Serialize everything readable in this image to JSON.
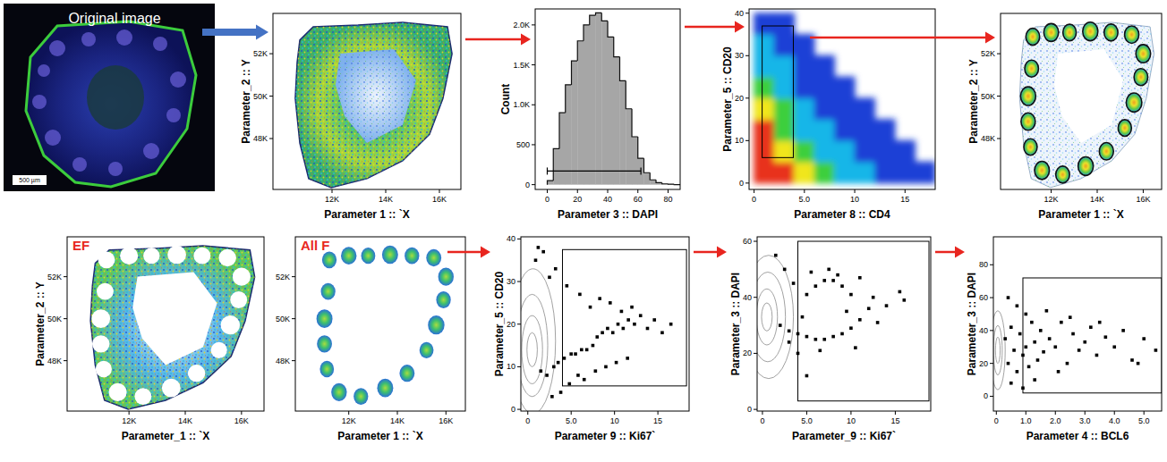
{
  "chart_data": [
    {
      "type": "image",
      "title": "Original image",
      "scale_label": "500 µm"
    },
    {
      "type": "map",
      "x_label": "Parameter 1 :: `X",
      "y_label": "Parameter_2 :: Y",
      "xlim": [
        9800,
        16800
      ],
      "ylim": [
        45600,
        53900
      ],
      "xticks": [
        {
          "value": 12000,
          "label": "12K"
        },
        {
          "value": 14000,
          "label": "14K"
        },
        {
          "value": 16000,
          "label": "16K"
        }
      ],
      "yticks": [
        {
          "value": 48000,
          "label": "48K"
        },
        {
          "value": 50000,
          "label": "50K"
        },
        {
          "value": 52000,
          "label": "52K"
        }
      ],
      "outline": {
        "x": [
          10800,
          11300,
          12970,
          14630,
          16300,
          16470,
          16130,
          15630,
          14630,
          13300,
          11970,
          11130,
          10800,
          10630,
          10700
        ],
        "y": [
          52640,
          53270,
          53350,
          53480,
          53270,
          51990,
          49890,
          48200,
          46950,
          46110,
          45690,
          46110,
          47790,
          49900,
          51580
        ]
      },
      "hollow": {
        "x": [
          12300,
          14300,
          15130,
          14630,
          13300,
          12470,
          12130
        ],
        "y": [
          52010,
          52220,
          50740,
          48640,
          47790,
          49060,
          50530
        ]
      }
    },
    {
      "type": "histogram",
      "x_label": "Parameter 3 :: DAPI",
      "y_label": "Count",
      "xlim": [
        -8,
        88
      ],
      "ylim": [
        -60,
        2200
      ],
      "xticks": [
        0,
        20,
        40,
        60,
        80
      ],
      "yticks": [
        0,
        500,
        {
          "value": 1000,
          "label": "1.0K"
        },
        {
          "value": 1500,
          "label": "1.5K"
        },
        {
          "value": 2000,
          "label": "2.0K"
        }
      ],
      "bins": [
        0,
        4,
        8,
        12,
        16,
        20,
        24,
        28,
        32,
        36,
        40,
        44,
        48,
        52,
        56,
        60,
        64,
        68,
        72,
        76,
        80,
        84,
        88
      ],
      "values": [
        50,
        450,
        900,
        1250,
        1550,
        1800,
        2000,
        2120,
        2150,
        2050,
        1850,
        1600,
        1300,
        950,
        600,
        330,
        150,
        60,
        25,
        10,
        5,
        0
      ],
      "gate": {
        "x": [
          0,
          62
        ],
        "y": 170
      }
    },
    {
      "type": "density",
      "x_label": "Parameter 8 :: CD4",
      "y_label": "Parameter_5 :: CD20",
      "xlim": [
        -0.5,
        18
      ],
      "ylim": [
        -1.5,
        41
      ],
      "xticks": [
        0,
        {
          "value": 5,
          "label": "5.0"
        },
        10,
        15
      ],
      "yticks": [
        0,
        10,
        20,
        30,
        40
      ],
      "x_edges": [
        0,
        2,
        4,
        6,
        8,
        10,
        12,
        14,
        16,
        18
      ],
      "y_edges": [
        0,
        5,
        10,
        15,
        20,
        25,
        30,
        35,
        40
      ],
      "cells": [
        [
          5,
          5,
          4,
          3,
          2,
          2,
          1,
          1,
          1
        ],
        [
          5,
          4,
          3,
          2,
          2,
          1,
          1,
          1,
          0
        ],
        [
          5,
          3,
          2,
          2,
          1,
          1,
          1,
          0,
          0
        ],
        [
          4,
          3,
          2,
          1,
          1,
          1,
          0,
          0,
          0
        ],
        [
          3,
          2,
          1,
          1,
          1,
          0,
          0,
          0,
          0
        ],
        [
          2,
          2,
          1,
          1,
          0,
          0,
          0,
          0,
          0
        ],
        [
          2,
          1,
          1,
          0,
          0,
          0,
          0,
          0,
          0
        ],
        [
          1,
          1,
          0,
          0,
          0,
          0,
          0,
          0,
          0
        ]
      ],
      "gate": {
        "x": [
          0.8,
          3.9
        ],
        "y": [
          6,
          37
        ]
      }
    },
    {
      "type": "map",
      "x_label": "Parameter 1 :: `X",
      "y_label": "Parameter_2 :: Y",
      "xlim": [
        9800,
        16800
      ],
      "ylim": [
        45600,
        53900
      ],
      "xticks": [
        {
          "value": 12000,
          "label": "12K"
        },
        {
          "value": 14000,
          "label": "14K"
        },
        {
          "value": 16000,
          "label": "16K"
        }
      ],
      "yticks": [
        {
          "value": 48000,
          "label": "48K"
        },
        {
          "value": 50000,
          "label": "50K"
        },
        {
          "value": 52000,
          "label": "52K"
        }
      ],
      "outline": {
        "x": [
          10800,
          11300,
          12970,
          14630,
          16300,
          16470,
          16130,
          15630,
          14630,
          13300,
          11970,
          11130,
          10800,
          10630,
          10700
        ],
        "y": [
          52640,
          53270,
          53350,
          53480,
          53270,
          51990,
          49890,
          48200,
          46950,
          46110,
          45690,
          46110,
          47790,
          49900,
          51580
        ]
      },
      "hollow": {
        "x": [
          12300,
          14300,
          15130,
          14630,
          13300,
          12470,
          12130
        ],
        "y": [
          52010,
          52220,
          50740,
          48640,
          47790,
          49060,
          50530
        ]
      },
      "gates": {
        "x": [
          11200,
          12000,
          12800,
          13700,
          14600,
          15500,
          16000,
          15900,
          15600,
          15200,
          14400,
          13500,
          12500,
          11600,
          11100,
          11000,
          11000,
          11150
        ],
        "y": [
          52800,
          53000,
          53000,
          53050,
          53000,
          52900,
          52000,
          50900,
          49700,
          48500,
          47400,
          46700,
          46300,
          46500,
          47600,
          48800,
          50000,
          51300
        ],
        "rx": [
          300,
          320,
          290,
          330,
          300,
          310,
          320,
          300,
          340,
          290,
          310,
          330,
          300,
          320,
          290,
          310,
          330,
          300
        ],
        "ry": [
          400,
          420,
          390,
          440,
          400,
          410,
          430,
          400,
          450,
          390,
          410,
          440,
          400,
          430,
          390,
          410,
          440,
          400
        ]
      }
    },
    {
      "type": "map",
      "title": "EF",
      "x_label": "Parameter_1 :: `X",
      "y_label": "Parameter_2 :: Y",
      "xlim": [
        9800,
        16800
      ],
      "ylim": [
        45600,
        53900
      ],
      "xticks": [
        {
          "value": 12000,
          "label": "12K"
        },
        {
          "value": 14000,
          "label": "14K"
        },
        {
          "value": 16000,
          "label": "16K"
        }
      ],
      "yticks": [
        {
          "value": 48000,
          "label": "48K"
        },
        {
          "value": 50000,
          "label": "50K"
        },
        {
          "value": 52000,
          "label": "52K"
        }
      ],
      "outline": {
        "x": [
          10800,
          11300,
          12970,
          14630,
          16300,
          16470,
          16130,
          15630,
          14630,
          13300,
          11970,
          11130,
          10800,
          10630,
          10700
        ],
        "y": [
          52640,
          53270,
          53350,
          53480,
          53270,
          51990,
          49890,
          48200,
          46950,
          46110,
          45690,
          46110,
          47790,
          49900,
          51580
        ]
      },
      "hollow": {
        "x": [
          12300,
          14300,
          15130,
          14630,
          13300,
          12470,
          12130
        ],
        "y": [
          52010,
          52220,
          50740,
          48640,
          47790,
          49060,
          50530
        ]
      },
      "holes": {
        "x": [
          11200,
          12000,
          12800,
          13700,
          14600,
          15500,
          16000,
          15900,
          15600,
          15200,
          14400,
          13500,
          12500,
          11600,
          11100,
          11000,
          11000,
          11150
        ],
        "y": [
          52800,
          53000,
          53000,
          53050,
          53000,
          52900,
          52000,
          50900,
          49700,
          48500,
          47400,
          46700,
          46300,
          46500,
          47600,
          48800,
          50000,
          51300
        ],
        "rx": [
          300,
          320,
          290,
          330,
          300,
          310,
          320,
          300,
          340,
          290,
          310,
          330,
          300,
          320,
          290,
          310,
          330,
          300
        ],
        "ry": [
          400,
          420,
          390,
          440,
          400,
          410,
          430,
          400,
          450,
          390,
          410,
          440,
          400,
          430,
          390,
          410,
          440,
          400
        ]
      }
    },
    {
      "type": "map",
      "title": "All F",
      "x_label": "Parameter 1 :: `X",
      "xlim": [
        9800,
        16800
      ],
      "ylim": [
        45600,
        53900
      ],
      "xticks": [
        {
          "value": 12000,
          "label": "12K"
        },
        {
          "value": 14000,
          "label": "14K"
        },
        {
          "value": 16000,
          "label": "16K"
        }
      ],
      "yticks": [
        {
          "value": 48000,
          "label": "48K"
        },
        {
          "value": 50000,
          "label": "50K"
        },
        {
          "value": 52000,
          "label": "52K"
        }
      ],
      "follicles": {
        "x": [
          11200,
          12000,
          12800,
          13700,
          14600,
          15500,
          16000,
          15900,
          15600,
          15200,
          14400,
          13500,
          12500,
          11600,
          11100,
          11000,
          11000,
          11150
        ],
        "y": [
          52800,
          53000,
          53000,
          53050,
          53000,
          52900,
          52000,
          50900,
          49700,
          48500,
          47400,
          46700,
          46300,
          46500,
          47600,
          48800,
          50000,
          51300
        ],
        "rx": [
          300,
          320,
          290,
          330,
          300,
          310,
          320,
          300,
          340,
          290,
          310,
          330,
          300,
          320,
          290,
          310,
          330,
          300
        ],
        "ry": [
          400,
          420,
          390,
          440,
          400,
          410,
          430,
          400,
          450,
          390,
          410,
          440,
          400,
          430,
          390,
          410,
          440,
          400
        ]
      }
    },
    {
      "type": "scatter",
      "x_label": "Parameter 9 :: Ki67`",
      "y_label": "Parameter_5 :: CD20",
      "xlim": [
        -0.8,
        18.6
      ],
      "ylim": [
        -0.4,
        40.5
      ],
      "xticks": [
        0,
        {
          "value": 5,
          "label": "5.0"
        },
        10,
        15
      ],
      "yticks": [
        0,
        10,
        20,
        30,
        40
      ],
      "contours": {
        "x": [
          0.5,
          0.5,
          0.5,
          0.6
        ],
        "y": [
          14,
          14,
          15,
          16
        ],
        "rx": [
          0.6,
          1.2,
          1.8,
          2.6
        ],
        "ry": [
          4,
          8,
          12,
          17
        ]
      },
      "x": [
        1.5,
        2.2,
        3.0,
        3.5,
        4.2,
        5.0,
        5.5,
        6.2,
        6.8,
        7.5,
        8.0,
        8.6,
        9.2,
        9.8,
        10.4,
        11.0,
        11.6,
        12.3,
        13.0,
        13.8,
        14.6,
        15.5,
        16.5,
        7.2,
        8.3,
        9.5,
        10.8,
        12.0,
        5.8,
        6.5,
        7.8,
        9.0,
        10.2,
        11.5,
        2.5,
        3.2,
        1.8,
        4.5,
        6.0,
        3.8,
        2.8,
        1.2,
        0.9,
        4.8
      ],
      "y": [
        9,
        8,
        10,
        11,
        12,
        13,
        13,
        14,
        14,
        15,
        17,
        18,
        19,
        18,
        20,
        19,
        21,
        20,
        22,
        19,
        21,
        18,
        20,
        24,
        26,
        25,
        23,
        24,
        8,
        7,
        9,
        10,
        11,
        12,
        31,
        33,
        37,
        29,
        27,
        4,
        3,
        38,
        35,
        6
      ],
      "gate": {
        "x": [
          4,
          18.3
        ],
        "y": [
          5.5,
          37.5
        ]
      }
    },
    {
      "type": "scatter",
      "x_label": "Parameter_9 :: Ki67`",
      "y_label": "Parameter_3 :: DAPI",
      "xlim": [
        -0.6,
        19
      ],
      "ylim": [
        -0.6,
        61.6
      ],
      "xticks": [
        0,
        {
          "value": 5,
          "label": "5.0"
        },
        10,
        15
      ],
      "yticks": [
        0,
        20,
        40,
        60
      ],
      "contours": {
        "x": [
          0.5,
          0.5,
          0.6,
          0.7
        ],
        "y": [
          33,
          33,
          33,
          33
        ],
        "rx": [
          0.6,
          1.2,
          2,
          2.8
        ],
        "ry": [
          5,
          10,
          16,
          22
        ]
      },
      "x": [
        2,
        3,
        4,
        5,
        6,
        7,
        8,
        9,
        10,
        11,
        12,
        4.5,
        5,
        6,
        7,
        8,
        9,
        10,
        9.5,
        8.5,
        3.5,
        5.5,
        7.5,
        11,
        12.5,
        14,
        15.5,
        13,
        6.5,
        4,
        3,
        10.5,
        2.5,
        16,
        1.5,
        5
      ],
      "y": [
        30,
        28,
        27,
        26,
        25,
        25,
        26,
        27,
        29,
        32,
        36,
        33,
        41,
        44,
        46,
        46,
        44,
        41,
        35,
        48,
        45,
        49,
        50,
        47,
        40,
        37,
        42,
        31,
        21,
        20,
        24,
        22,
        50,
        39,
        55,
        12
      ],
      "gate": {
        "x": [
          4,
          18.8
        ],
        "y": [
          3,
          60
        ]
      }
    },
    {
      "type": "scatter",
      "x_label": "Parameter 4 :: BCL6",
      "y_label": "Parameter_3 :: DAPI",
      "xlim": [
        -0.1,
        5.6
      ],
      "ylim": [
        -9,
        97
      ],
      "xticks": [
        0,
        {
          "value": 1,
          "label": "1.0"
        },
        {
          "value": 2,
          "label": "2.0"
        },
        {
          "value": 3,
          "label": "3.0"
        },
        {
          "value": 4,
          "label": "4.0"
        },
        {
          "value": 5,
          "label": "5.0"
        }
      ],
      "yticks": [
        0,
        20,
        40,
        60,
        80
      ],
      "contours": {
        "x": [
          0.05,
          0.05,
          0.05
        ],
        "y": [
          28,
          28,
          28
        ],
        "rx": [
          0.08,
          0.15,
          0.25
        ],
        "ry": [
          8,
          15,
          24
        ]
      },
      "x": [
        0.3,
        0.4,
        0.5,
        0.6,
        0.7,
        0.8,
        0.9,
        1.0,
        1.1,
        1.2,
        1.3,
        1.4,
        1.5,
        1.6,
        1.8,
        2.0,
        2.2,
        2.4,
        2.6,
        2.8,
        3.0,
        3.2,
        3.4,
        3.7,
        4.0,
        4.3,
        4.6,
        5.0,
        5.4,
        0.5,
        0.7,
        1.0,
        1.3,
        1.7,
        2.1,
        2.5,
        0.4,
        0.9,
        3.5,
        4.8
      ],
      "y": [
        35,
        20,
        42,
        28,
        15,
        38,
        25,
        30,
        18,
        45,
        33,
        22,
        40,
        27,
        35,
        30,
        45,
        20,
        38,
        28,
        33,
        42,
        25,
        36,
        30,
        40,
        22,
        35,
        28,
        8,
        55,
        50,
        10,
        52,
        15,
        48,
        60,
        5,
        45,
        20
      ],
      "gate": {
        "x": [
          0.9,
          5.6
        ],
        "y": [
          2,
          72
        ]
      }
    }
  ]
}
